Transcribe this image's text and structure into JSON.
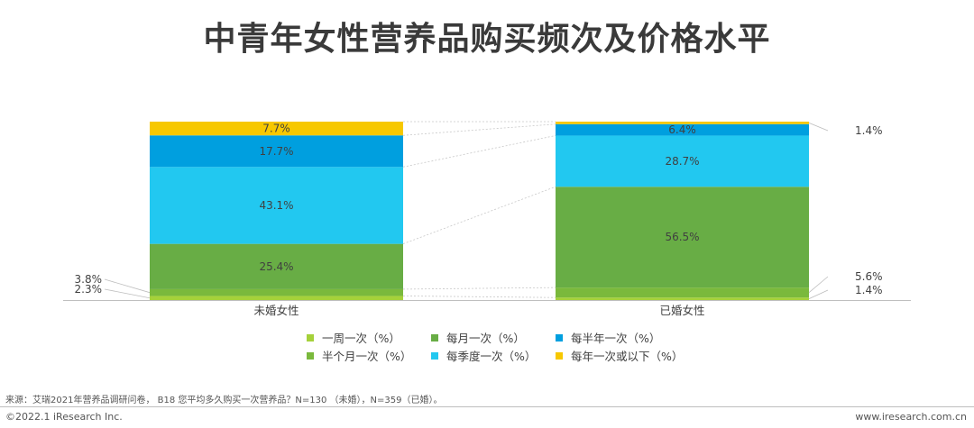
{
  "title": "中青年女性营养品购买频次及价格水平",
  "chart_data": {
    "type": "bar",
    "stacked": true,
    "percent": true,
    "categories": [
      "未婚女性",
      "已婚女性"
    ],
    "series": [
      {
        "name": "一周一次（%）",
        "color": "#a5d13a",
        "values": [
          2.3,
          1.4
        ]
      },
      {
        "name": "半个月一次（%）",
        "color": "#7ab93c",
        "values": [
          3.8,
          5.6
        ]
      },
      {
        "name": "每月一次（%）",
        "color": "#68ad45",
        "values": [
          25.4,
          56.5
        ]
      },
      {
        "name": "每季度一次（%）",
        "color": "#22c8f0",
        "values": [
          43.1,
          28.7
        ]
      },
      {
        "name": "每半年一次（%）",
        "color": "#009fdf",
        "values": [
          17.7,
          6.4
        ]
      },
      {
        "name": "每年一次或以下（%）",
        "color": "#f7c800",
        "values": [
          7.7,
          1.4
        ]
      }
    ],
    "value_labels": {
      "inside": [
        [
          "",
          "",
          "25.4%",
          "43.1%",
          "17.7%",
          "7.7%"
        ],
        [
          "",
          "",
          "56.5%",
          "28.7%",
          "6.4%",
          ""
        ]
      ],
      "outside_left": [
        [
          "2.3%",
          "3.8%"
        ]
      ],
      "outside_right": [
        [
          "1.4%",
          "5.6%",
          "1.4%"
        ]
      ]
    },
    "ylim": [
      0,
      100
    ],
    "legend_position": "bottom"
  },
  "legend": [
    {
      "label": "一周一次（%）",
      "color": "#a5d13a"
    },
    {
      "label": "每月一次（%）",
      "color": "#68ad45"
    },
    {
      "label": "每半年一次（%）",
      "color": "#009fdf"
    },
    {
      "label": "半个月一次（%）",
      "color": "#7ab93c"
    },
    {
      "label": "每季度一次（%）",
      "color": "#22c8f0"
    },
    {
      "label": "每年一次或以下（%）",
      "color": "#f7c800"
    }
  ],
  "footer": {
    "source": "来源：艾瑞2021年营养品调研问卷， B18 您平均多久购买一次营养品？N=130 （未婚），N=359（已婚）。",
    "copyright": "©2022.1 iResearch Inc.",
    "website": "www.iresearch.com.cn"
  }
}
